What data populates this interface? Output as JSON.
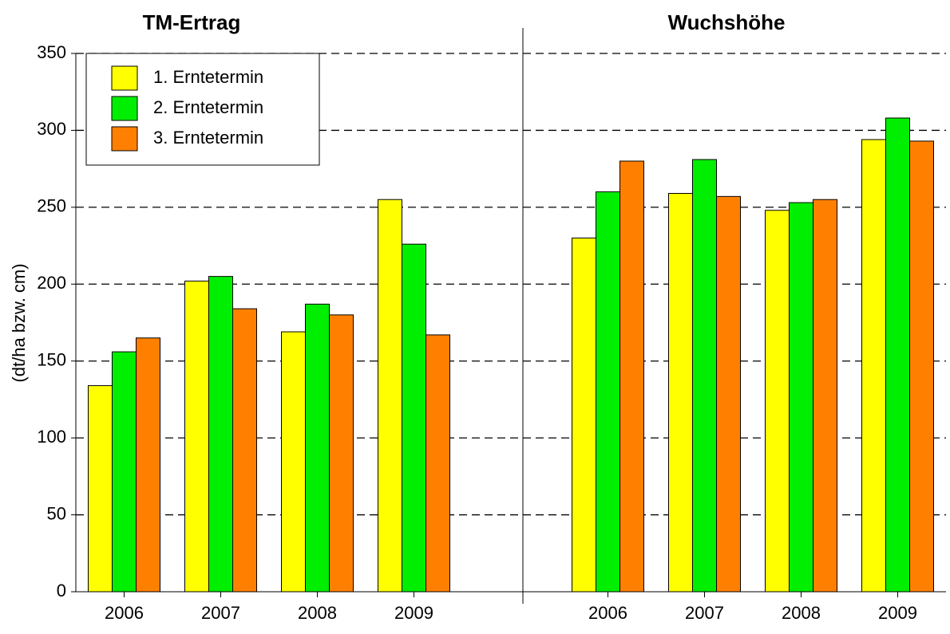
{
  "chart_data": [
    {
      "type": "bar",
      "title": "TM-Ertrag",
      "ylabel": "(dt/ha bzw. cm)",
      "categories": [
        "2006",
        "2007",
        "2008",
        "2009"
      ],
      "series": [
        {
          "name": "1. Erntetermin",
          "color": "#ffff00",
          "values": [
            134,
            202,
            169,
            255
          ]
        },
        {
          "name": "2. Erntetermin",
          "color": "#00ee00",
          "values": [
            156,
            205,
            187,
            226
          ]
        },
        {
          "name": "3. Erntetermin",
          "color": "#ff8000",
          "values": [
            165,
            184,
            180,
            167
          ]
        }
      ],
      "ylim": [
        0,
        350
      ],
      "yticks": [
        0,
        50,
        100,
        150,
        200,
        250,
        300,
        350
      ],
      "grid": true,
      "legend": "upper left"
    },
    {
      "type": "bar",
      "title": "Wuchshöhe",
      "categories": [
        "2006",
        "2007",
        "2008",
        "2009"
      ],
      "series": [
        {
          "color": "#ffff00",
          "values": [
            230,
            259,
            248,
            294
          ]
        },
        {
          "color": "#00ee00",
          "values": [
            260,
            281,
            253,
            308
          ]
        },
        {
          "color": "#ff8000",
          "values": [
            280,
            257,
            255,
            293
          ]
        }
      ],
      "ylim": [
        0,
        350
      ]
    }
  ]
}
